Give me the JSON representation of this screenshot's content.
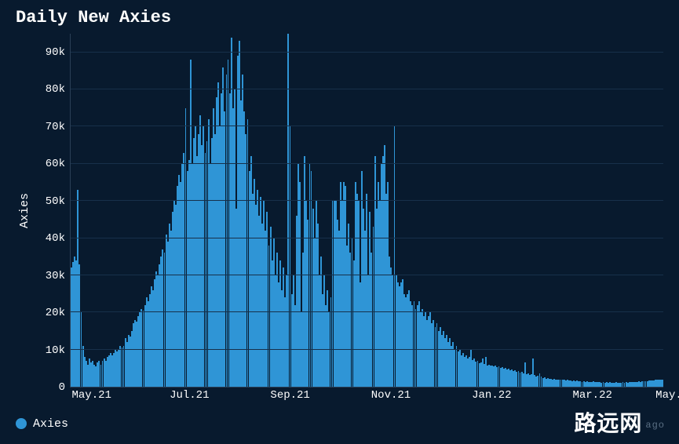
{
  "title": "Daily New Axies",
  "chart": {
    "type": "bar",
    "ylabel": "Axies",
    "ylim": [
      0,
      95000
    ],
    "yticks": [
      {
        "v": 0,
        "label": "0"
      },
      {
        "v": 10000,
        "label": "10k"
      },
      {
        "v": 20000,
        "label": "20k"
      },
      {
        "v": 30000,
        "label": "30k"
      },
      {
        "v": 40000,
        "label": "40k"
      },
      {
        "v": 50000,
        "label": "50k"
      },
      {
        "v": 60000,
        "label": "60k"
      },
      {
        "v": 70000,
        "label": "70k"
      },
      {
        "v": 80000,
        "label": "80k"
      },
      {
        "v": 90000,
        "label": "90k"
      }
    ],
    "xticks": [
      {
        "pos": 0.01,
        "label": "May.21"
      },
      {
        "pos": 0.175,
        "label": "Jul.21"
      },
      {
        "pos": 0.345,
        "label": "Sep.21"
      },
      {
        "pos": 0.515,
        "label": "Nov.21"
      },
      {
        "pos": 0.685,
        "label": "Jan.22"
      },
      {
        "pos": 0.855,
        "label": "Mar.22"
      },
      {
        "pos": 0.995,
        "label": "May.22"
      }
    ],
    "bar_color": "#2f95d6",
    "background_color": "#081a2e",
    "grid_color": "#17304a",
    "axis_color": "#2a3f56",
    "title_fontsize": 22,
    "label_fontsize": 15,
    "tick_fontsize": 14,
    "values": [
      32000,
      33500,
      35000,
      34000,
      53000,
      33000,
      20000,
      11000,
      8000,
      7000,
      6000,
      7500,
      6500,
      7000,
      6000,
      5500,
      6500,
      7000,
      6000,
      7000,
      7500,
      7000,
      8000,
      8500,
      9000,
      8500,
      9000,
      10000,
      9500,
      10000,
      11000,
      10500,
      11000,
      13000,
      12000,
      14000,
      13500,
      15000,
      17000,
      18000,
      17500,
      19000,
      20000,
      21000,
      20500,
      22000,
      24000,
      23000,
      25000,
      27000,
      26000,
      29000,
      31000,
      30000,
      33000,
      35000,
      37000,
      36000,
      41000,
      39000,
      44000,
      42000,
      47000,
      50000,
      49000,
      54000,
      57000,
      55000,
      60000,
      63000,
      75000,
      58000,
      61000,
      88000,
      60000,
      67000,
      70000,
      62000,
      68000,
      73000,
      65000,
      70000,
      63000,
      66000,
      72000,
      60000,
      67000,
      75000,
      68000,
      78000,
      82000,
      70000,
      79000,
      86000,
      74000,
      84000,
      88000,
      79000,
      94000,
      75000,
      80000,
      48000,
      89000,
      93000,
      77000,
      84000,
      74000,
      68000,
      72000,
      58000,
      62000,
      52000,
      56000,
      49000,
      53000,
      46000,
      51000,
      44000,
      50000,
      42000,
      47000,
      38000,
      43000,
      34000,
      40000,
      30000,
      36000,
      28000,
      34000,
      26000,
      32000,
      24000,
      30000,
      98000,
      70000,
      25000,
      30000,
      22000,
      46000,
      60000,
      55000,
      20000,
      36000,
      62000,
      50000,
      45000,
      60000,
      58000,
      48000,
      40000,
      50000,
      44000,
      30000,
      35000,
      25000,
      30000,
      22000,
      26000,
      20000,
      24000,
      50000,
      50000,
      50000,
      45000,
      42000,
      55000,
      50000,
      55000,
      54000,
      38000,
      44000,
      36000,
      40000,
      34000,
      55000,
      52000,
      50000,
      28000,
      58000,
      48000,
      42000,
      52000,
      30000,
      47000,
      36000,
      43000,
      62000,
      48000,
      55000,
      50000,
      60000,
      62000,
      65000,
      52000,
      55000,
      35000,
      32000,
      30000,
      70000,
      30000,
      28000,
      27000,
      28000,
      29000,
      25000,
      24000,
      25000,
      26000,
      23000,
      22000,
      23000,
      21000,
      22000,
      23000,
      20000,
      21000,
      19000,
      20000,
      18000,
      19000,
      20000,
      17000,
      18000,
      16000,
      17000,
      15000,
      16000,
      14000,
      15000,
      13000,
      14000,
      12000,
      13000,
      11000,
      12000,
      10000,
      11000,
      9500,
      10000,
      8500,
      9000,
      8000,
      8500,
      7500,
      8000,
      10000,
      7200,
      7600,
      6800,
      7000,
      6400,
      6600,
      7500,
      6200,
      8000,
      5800,
      6000,
      5600,
      5800,
      5400,
      5600,
      5200,
      5400,
      5000,
      5200,
      4800,
      5000,
      4600,
      4800,
      4400,
      4600,
      4200,
      4400,
      4000,
      4200,
      3800,
      4000,
      3600,
      6500,
      3400,
      3600,
      3200,
      3400,
      7500,
      3200,
      2800,
      3000,
      3600,
      2800,
      2400,
      2600,
      2200,
      2400,
      2200,
      2200,
      2000,
      2200,
      2000,
      2000,
      1800,
      2000,
      1800,
      1800,
      1600,
      1800,
      1600,
      1600,
      1400,
      1600,
      1400,
      1600,
      1400,
      1400,
      1300,
      1500,
      1300,
      1400,
      1300,
      1300,
      1200,
      1400,
      1200,
      1300,
      1200,
      1200,
      1100,
      1300,
      1100,
      1200,
      1100,
      1200,
      1100,
      1100,
      1000,
      1200,
      1100,
      1100,
      1100,
      1200,
      1100,
      1200,
      1100,
      1200,
      1200,
      1300,
      1200,
      1300,
      1300,
      1400,
      1300,
      1400,
      1400,
      1500,
      1500,
      1600,
      1600,
      1700,
      1700,
      1800,
      1800,
      1900,
      1900,
      2000,
      2000
    ]
  },
  "legend": {
    "swatch_color": "#2f95d6",
    "label": "Axies"
  },
  "watermark": "路远网",
  "ago_text": "ago"
}
